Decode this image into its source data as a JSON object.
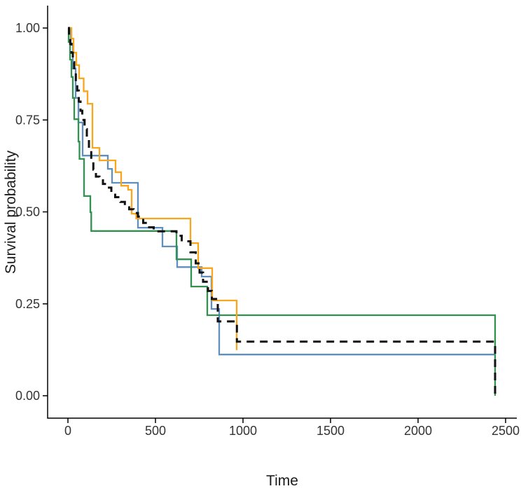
{
  "chart_data": {
    "type": "line",
    "subtype": "kaplan-meier-step-survival",
    "title": "",
    "xlabel": "Time",
    "ylabel": "Survival probability",
    "xlim": [
      0,
      2560
    ],
    "ylim": [
      0,
      1.05
    ],
    "grid": false,
    "legend": "none",
    "x_ticks": [
      {
        "value": 0,
        "label": "0"
      },
      {
        "value": 500,
        "label": "500"
      },
      {
        "value": 1000,
        "label": "1000"
      },
      {
        "value": 1500,
        "label": "1500"
      },
      {
        "value": 2000,
        "label": "2000"
      },
      {
        "value": 2500,
        "label": "2500"
      }
    ],
    "y_ticks": [
      {
        "value": 0.0,
        "label": "0.00"
      },
      {
        "value": 0.25,
        "label": "0.25"
      },
      {
        "value": 0.5,
        "label": "0.50"
      },
      {
        "value": 0.75,
        "label": "0.75"
      },
      {
        "value": 1.0,
        "label": "1.00"
      }
    ],
    "series": [
      {
        "series_id": "group-blue",
        "color": "#5E8FC0",
        "dash": "solid",
        "end_time": 2440,
        "points": [
          [
            0,
            1.0
          ],
          [
            16,
            0.958
          ],
          [
            28,
            0.89
          ],
          [
            44,
            0.81
          ],
          [
            60,
            0.743
          ],
          [
            84,
            0.653
          ],
          [
            228,
            0.617
          ],
          [
            252,
            0.579
          ],
          [
            400,
            0.457
          ],
          [
            540,
            0.406
          ],
          [
            624,
            0.35
          ],
          [
            764,
            0.324
          ],
          [
            820,
            0.236
          ],
          [
            864,
            0.112
          ]
        ]
      },
      {
        "series_id": "group-green",
        "color": "#31914E",
        "dash": "solid",
        "end_time": 2440,
        "points": [
          [
            0,
            1.0
          ],
          [
            4,
            0.962
          ],
          [
            12,
            0.914
          ],
          [
            20,
            0.867
          ],
          [
            28,
            0.81
          ],
          [
            36,
            0.752
          ],
          [
            60,
            0.691
          ],
          [
            66,
            0.644
          ],
          [
            92,
            0.543
          ],
          [
            128,
            0.499
          ],
          [
            133,
            0.448
          ],
          [
            620,
            0.371
          ],
          [
            704,
            0.297
          ],
          [
            796,
            0.219
          ],
          [
            2440,
            0.0
          ]
        ]
      },
      {
        "series_id": "group-orange",
        "color": "#F9A51D",
        "dash": "solid",
        "end_time": 964,
        "points": [
          [
            0,
            1.0
          ],
          [
            20,
            0.971
          ],
          [
            32,
            0.933
          ],
          [
            48,
            0.899
          ],
          [
            64,
            0.863
          ],
          [
            90,
            0.828
          ],
          [
            112,
            0.794
          ],
          [
            140,
            0.674
          ],
          [
            180,
            0.64
          ],
          [
            272,
            0.608
          ],
          [
            304,
            0.571
          ],
          [
            344,
            0.56
          ],
          [
            364,
            0.495
          ],
          [
            390,
            0.482
          ],
          [
            700,
            0.415
          ],
          [
            744,
            0.347
          ],
          [
            824,
            0.259
          ],
          [
            964,
            0.124
          ]
        ]
      },
      {
        "series_id": "overall-dashed",
        "color": "#111111",
        "dash": "dashed",
        "end_time": 2440,
        "points": [
          [
            0,
            1.0
          ],
          [
            6,
            0.981
          ],
          [
            13,
            0.957
          ],
          [
            20,
            0.933
          ],
          [
            28,
            0.907
          ],
          [
            36,
            0.88
          ],
          [
            45,
            0.855
          ],
          [
            53,
            0.83
          ],
          [
            62,
            0.8
          ],
          [
            72,
            0.775
          ],
          [
            82,
            0.75
          ],
          [
            95,
            0.725
          ],
          [
            108,
            0.7
          ],
          [
            120,
            0.668
          ],
          [
            133,
            0.64
          ],
          [
            145,
            0.615
          ],
          [
            160,
            0.596
          ],
          [
            180,
            0.586
          ],
          [
            200,
            0.576
          ],
          [
            224,
            0.566
          ],
          [
            248,
            0.553
          ],
          [
            270,
            0.54
          ],
          [
            300,
            0.527
          ],
          [
            325,
            0.517
          ],
          [
            350,
            0.507
          ],
          [
            375,
            0.497
          ],
          [
            400,
            0.487
          ],
          [
            430,
            0.47
          ],
          [
            455,
            0.458
          ],
          [
            490,
            0.447
          ],
          [
            620,
            0.435
          ],
          [
            650,
            0.42
          ],
          [
            700,
            0.39
          ],
          [
            730,
            0.36
          ],
          [
            752,
            0.335
          ],
          [
            772,
            0.31
          ],
          [
            800,
            0.285
          ],
          [
            822,
            0.263
          ],
          [
            856,
            0.202
          ],
          [
            965,
            0.147
          ],
          [
            2440,
            0.0
          ]
        ]
      }
    ]
  }
}
